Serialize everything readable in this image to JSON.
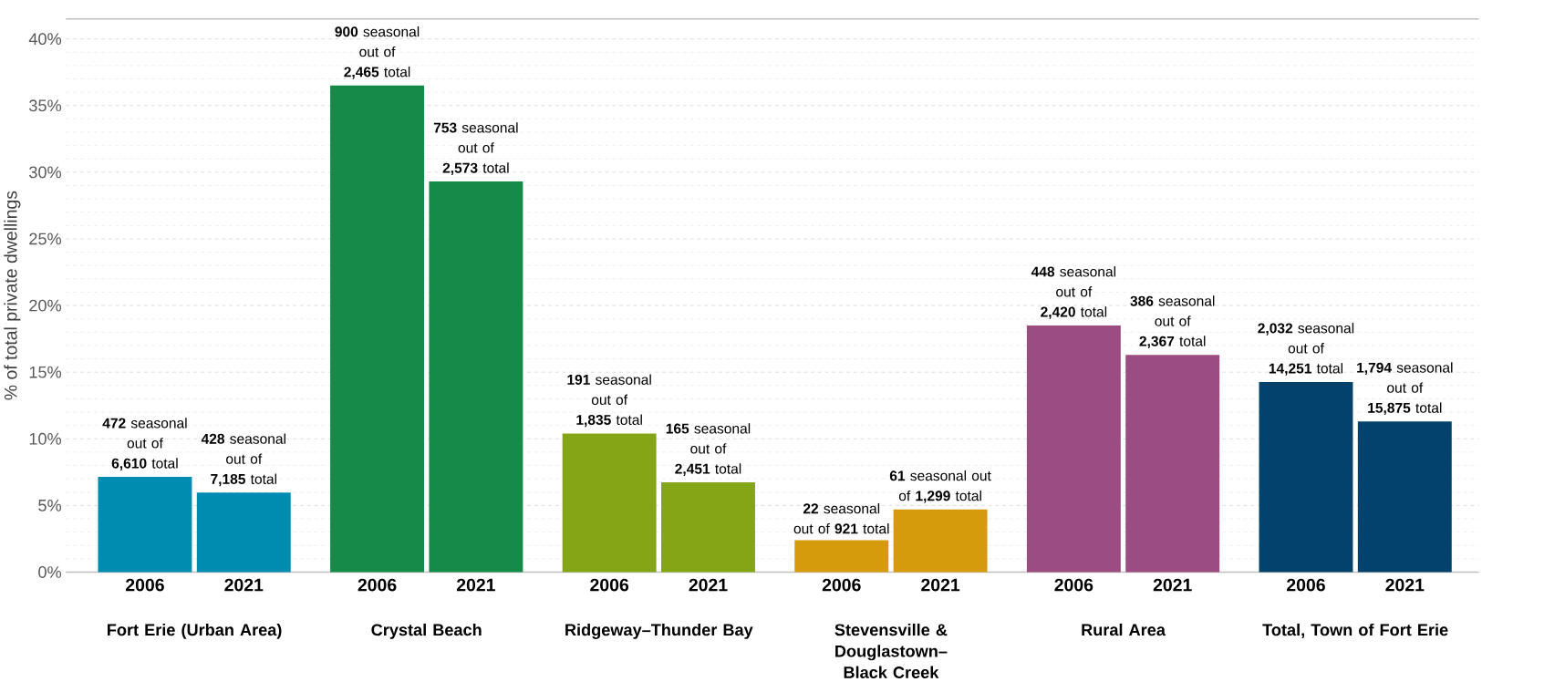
{
  "chart_data": {
    "type": "bar",
    "ylabel": "% of total private dwellings",
    "categories": [
      "2006",
      "2021",
      "2006",
      "2021",
      "2006",
      "2021",
      "2006",
      "2021",
      "2006",
      "2021",
      "2006",
      "2021"
    ],
    "values": [
      7.14,
      5.96,
      36.5,
      29.3,
      10.4,
      6.73,
      2.39,
      4.7,
      18.5,
      16.3,
      14.26,
      11.3
    ],
    "colors": [
      "#008bb0",
      "#008bb0",
      "#168b48",
      "#168b48",
      "#84a516",
      "#84a516",
      "#d59b0d",
      "#d59b0d",
      "#9b4d82",
      "#9b4d82",
      "#03436b",
      "#03436b"
    ],
    "value_labels": [
      "**472** seasonal out of **6,610** total",
      "**428** seasonal out of **7,185** total",
      "**900** seasonal out of **2,465** total",
      "**753** seasonal out of **2,573** total",
      "**191** seasonal out of **1,835** total",
      "**165** seasonal out of **2,451** total",
      "**22** seasonal out of **921** total",
      "**61** seasonal out of **1,299** total",
      "**448** seasonal out of **2,420** total",
      "**386** seasonal out of **2,367** total",
      "**2,032** seasonal out of **14,251** total",
      "**1,794** seasonal out of **15,875** total"
    ],
    "annotations": [
      "Fort Erie (Urban Area)",
      "Crystal Beach",
      "Ridgeway–Thunder Bay",
      "Stevensville & Douglastown–Black Creek",
      "Rural Area",
      "Total, Town of Fort Erie"
    ],
    "ylim": [
      0,
      41.5
    ],
    "yticks": [
      {
        "value": 0,
        "label": "0%"
      },
      {
        "value": 5,
        "label": "5%"
      },
      {
        "value": 10,
        "label": "10%"
      },
      {
        "value": 15,
        "label": "15%"
      },
      {
        "value": 20,
        "label": "20%"
      },
      {
        "value": 25,
        "label": "25%"
      },
      {
        "value": 30,
        "label": "30%"
      },
      {
        "value": 35,
        "label": "35%"
      },
      {
        "value": 40,
        "label": "40%"
      }
    ],
    "grid": "y"
  }
}
